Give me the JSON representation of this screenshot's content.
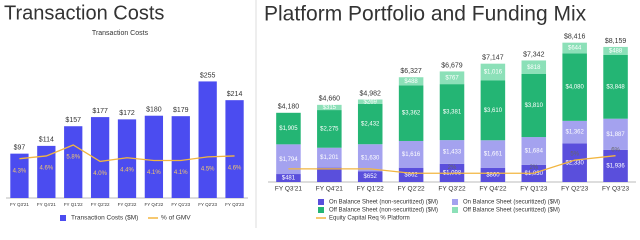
{
  "chart_data": [
    {
      "type": "bar",
      "title": "Transaction Costs",
      "subtitle": "Transaction Costs",
      "categories": [
        "FY Q3'21",
        "FY Q4'21",
        "FY Q1'22",
        "FY Q2'22",
        "FY Q3'22",
        "FY Q4'22",
        "FY Q1'23",
        "FY Q2'23",
        "FY Q3'23"
      ],
      "ylim": [
        0,
        280
      ],
      "y2lim": [
        0,
        14
      ],
      "series": [
        {
          "name": "Transaction Costs ($M)",
          "type": "bar",
          "color": "#4b4cf0",
          "values": [
            97,
            114,
            157,
            177,
            172,
            180,
            179,
            255,
            214
          ],
          "value_labels": [
            "$97",
            "$114",
            "$157",
            "$177",
            "$172",
            "$180",
            "$179",
            "$255",
            "$214"
          ]
        },
        {
          "name": "% of GMV",
          "type": "line",
          "axis": "y2",
          "color": "#f2b640",
          "values": [
            4.3,
            4.6,
            5.8,
            4.0,
            4.4,
            4.1,
            4.1,
            4.5,
            4.6
          ],
          "value_labels": [
            "4.3%",
            "4.6%",
            "5.8%",
            "4.0%",
            "4.4%",
            "4.1%",
            "4.1%",
            "4.5%",
            "4.6%"
          ]
        }
      ]
    },
    {
      "type": "stacked_bar",
      "title": "Platform Portfolio and Funding Mix",
      "categories": [
        "FY Q3'21",
        "FY Q4'21",
        "FY Q1'22",
        "FY Q2'22",
        "FY Q3'22",
        "FY Q4'22",
        "FY Q1'23",
        "FY Q2'23",
        "FY Q3'23"
      ],
      "ylim": [
        0,
        9000
      ],
      "y2lim": [
        0,
        34
      ],
      "totals": [
        4180,
        4660,
        4982,
        6327,
        6679,
        7147,
        7342,
        8416,
        8159
      ],
      "total_labels": [
        "$4,180",
        "$4,660",
        "$4,982",
        "$6,327",
        "$6,679",
        "$7,147",
        "$7,342",
        "$8,416",
        "$8,159"
      ],
      "series": [
        {
          "name": "On Balance Sheet (non-securitized) ($M)",
          "type": "bar",
          "color": "#5a4fdc",
          "values": [
            481,
            869,
            652,
            862,
            1098,
            860,
            1030,
            2330,
            1936
          ],
          "value_labels": [
            "$481",
            null,
            "$652",
            "$862",
            "$1,098",
            "$860",
            "$1,030",
            "$2,330",
            "$1,936"
          ]
        },
        {
          "name": "On Balance Sheet (securitized) ($M)",
          "type": "bar",
          "color": "#a4a2ef",
          "values": [
            1794,
            1201,
            1630,
            1616,
            1433,
            1661,
            1684,
            1362,
            1887
          ],
          "value_labels": [
            "$1,794",
            "$1,201",
            "$1,630",
            "$1,616",
            "$1,433",
            "$1,661",
            "$1,684",
            "$1,362",
            "$1,887"
          ]
        },
        {
          "name": "Off Balance Sheet (non-securitized) ($M)",
          "type": "bar",
          "color": "#24b574",
          "values": [
            1905,
            2275,
            2432,
            3362,
            3381,
            3610,
            3810,
            4080,
            3848
          ],
          "value_labels": [
            "$1,905",
            "$2,275",
            "$2,432",
            "$3,362",
            "$3,381",
            "$3,610",
            "$3,810",
            "$4,080",
            "$3,848"
          ]
        },
        {
          "name": "Off Balance Sheet (securitized) ($M)",
          "type": "bar",
          "color": "#8ce0b8",
          "values": [
            null,
            315,
            269,
            488,
            767,
            1016,
            818,
            644,
            488
          ],
          "value_labels": [
            null,
            "$315",
            "$269",
            "$488",
            "$767",
            "$1,016",
            "$818",
            "$644",
            "$488"
          ]
        },
        {
          "name": "Equity Capital Req % Platform",
          "type": "line",
          "axis": "y2",
          "color": "#f2b640",
          "values": [
            3,
            3,
            3,
            2,
            2,
            2,
            2,
            5,
            6
          ],
          "value_labels": [
            null,
            null,
            null,
            null,
            "2%",
            null,
            "2%",
            "5%",
            "6%"
          ]
        }
      ]
    }
  ]
}
